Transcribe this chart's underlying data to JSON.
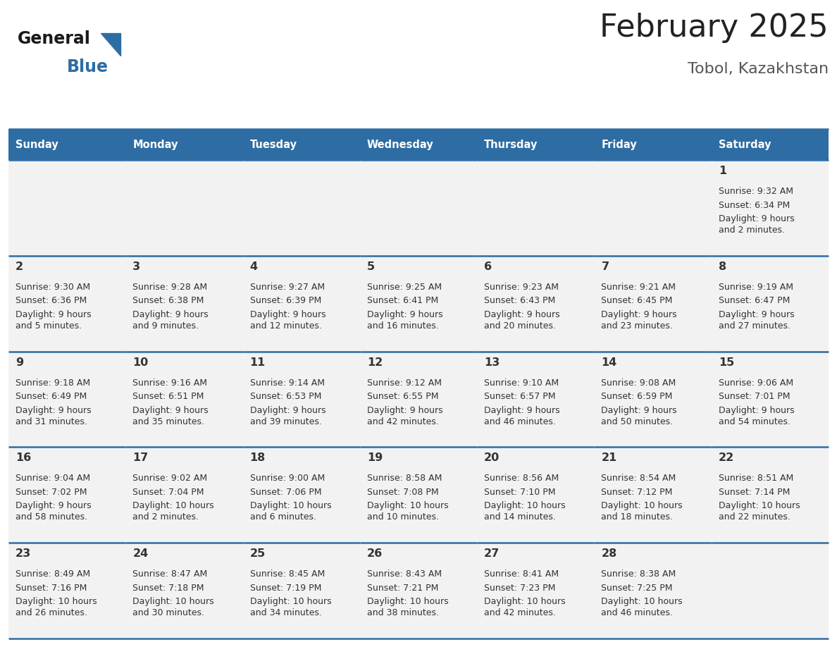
{
  "title": "February 2025",
  "subtitle": "Tobol, Kazakhstan",
  "header_color": "#2E6DA4",
  "header_text_color": "#ffffff",
  "cell_bg_odd": "#f2f2f2",
  "cell_bg_even": "#ffffff",
  "cell_border_color": "#2E6DA4",
  "text_color": "#333333",
  "days_of_week": [
    "Sunday",
    "Monday",
    "Tuesday",
    "Wednesday",
    "Thursday",
    "Friday",
    "Saturday"
  ],
  "weeks": [
    [
      {
        "day": null,
        "data": null
      },
      {
        "day": null,
        "data": null
      },
      {
        "day": null,
        "data": null
      },
      {
        "day": null,
        "data": null
      },
      {
        "day": null,
        "data": null
      },
      {
        "day": null,
        "data": null
      },
      {
        "day": 1,
        "data": {
          "sunrise": "9:32 AM",
          "sunset": "6:34 PM",
          "daylight": "9 hours\nand 2 minutes."
        }
      }
    ],
    [
      {
        "day": 2,
        "data": {
          "sunrise": "9:30 AM",
          "sunset": "6:36 PM",
          "daylight": "9 hours\nand 5 minutes."
        }
      },
      {
        "day": 3,
        "data": {
          "sunrise": "9:28 AM",
          "sunset": "6:38 PM",
          "daylight": "9 hours\nand 9 minutes."
        }
      },
      {
        "day": 4,
        "data": {
          "sunrise": "9:27 AM",
          "sunset": "6:39 PM",
          "daylight": "9 hours\nand 12 minutes."
        }
      },
      {
        "day": 5,
        "data": {
          "sunrise": "9:25 AM",
          "sunset": "6:41 PM",
          "daylight": "9 hours\nand 16 minutes."
        }
      },
      {
        "day": 6,
        "data": {
          "sunrise": "9:23 AM",
          "sunset": "6:43 PM",
          "daylight": "9 hours\nand 20 minutes."
        }
      },
      {
        "day": 7,
        "data": {
          "sunrise": "9:21 AM",
          "sunset": "6:45 PM",
          "daylight": "9 hours\nand 23 minutes."
        }
      },
      {
        "day": 8,
        "data": {
          "sunrise": "9:19 AM",
          "sunset": "6:47 PM",
          "daylight": "9 hours\nand 27 minutes."
        }
      }
    ],
    [
      {
        "day": 9,
        "data": {
          "sunrise": "9:18 AM",
          "sunset": "6:49 PM",
          "daylight": "9 hours\nand 31 minutes."
        }
      },
      {
        "day": 10,
        "data": {
          "sunrise": "9:16 AM",
          "sunset": "6:51 PM",
          "daylight": "9 hours\nand 35 minutes."
        }
      },
      {
        "day": 11,
        "data": {
          "sunrise": "9:14 AM",
          "sunset": "6:53 PM",
          "daylight": "9 hours\nand 39 minutes."
        }
      },
      {
        "day": 12,
        "data": {
          "sunrise": "9:12 AM",
          "sunset": "6:55 PM",
          "daylight": "9 hours\nand 42 minutes."
        }
      },
      {
        "day": 13,
        "data": {
          "sunrise": "9:10 AM",
          "sunset": "6:57 PM",
          "daylight": "9 hours\nand 46 minutes."
        }
      },
      {
        "day": 14,
        "data": {
          "sunrise": "9:08 AM",
          "sunset": "6:59 PM",
          "daylight": "9 hours\nand 50 minutes."
        }
      },
      {
        "day": 15,
        "data": {
          "sunrise": "9:06 AM",
          "sunset": "7:01 PM",
          "daylight": "9 hours\nand 54 minutes."
        }
      }
    ],
    [
      {
        "day": 16,
        "data": {
          "sunrise": "9:04 AM",
          "sunset": "7:02 PM",
          "daylight": "9 hours\nand 58 minutes."
        }
      },
      {
        "day": 17,
        "data": {
          "sunrise": "9:02 AM",
          "sunset": "7:04 PM",
          "daylight": "10 hours\nand 2 minutes."
        }
      },
      {
        "day": 18,
        "data": {
          "sunrise": "9:00 AM",
          "sunset": "7:06 PM",
          "daylight": "10 hours\nand 6 minutes."
        }
      },
      {
        "day": 19,
        "data": {
          "sunrise": "8:58 AM",
          "sunset": "7:08 PM",
          "daylight": "10 hours\nand 10 minutes."
        }
      },
      {
        "day": 20,
        "data": {
          "sunrise": "8:56 AM",
          "sunset": "7:10 PM",
          "daylight": "10 hours\nand 14 minutes."
        }
      },
      {
        "day": 21,
        "data": {
          "sunrise": "8:54 AM",
          "sunset": "7:12 PM",
          "daylight": "10 hours\nand 18 minutes."
        }
      },
      {
        "day": 22,
        "data": {
          "sunrise": "8:51 AM",
          "sunset": "7:14 PM",
          "daylight": "10 hours\nand 22 minutes."
        }
      }
    ],
    [
      {
        "day": 23,
        "data": {
          "sunrise": "8:49 AM",
          "sunset": "7:16 PM",
          "daylight": "10 hours\nand 26 minutes."
        }
      },
      {
        "day": 24,
        "data": {
          "sunrise": "8:47 AM",
          "sunset": "7:18 PM",
          "daylight": "10 hours\nand 30 minutes."
        }
      },
      {
        "day": 25,
        "data": {
          "sunrise": "8:45 AM",
          "sunset": "7:19 PM",
          "daylight": "10 hours\nand 34 minutes."
        }
      },
      {
        "day": 26,
        "data": {
          "sunrise": "8:43 AM",
          "sunset": "7:21 PM",
          "daylight": "10 hours\nand 38 minutes."
        }
      },
      {
        "day": 27,
        "data": {
          "sunrise": "8:41 AM",
          "sunset": "7:23 PM",
          "daylight": "10 hours\nand 42 minutes."
        }
      },
      {
        "day": 28,
        "data": {
          "sunrise": "8:38 AM",
          "sunset": "7:25 PM",
          "daylight": "10 hours\nand 46 minutes."
        }
      },
      {
        "day": null,
        "data": null
      }
    ]
  ],
  "logo_general_color": "#1a1a1a",
  "logo_blue_color": "#2E6DA4",
  "title_color": "#222222",
  "subtitle_color": "#555555"
}
